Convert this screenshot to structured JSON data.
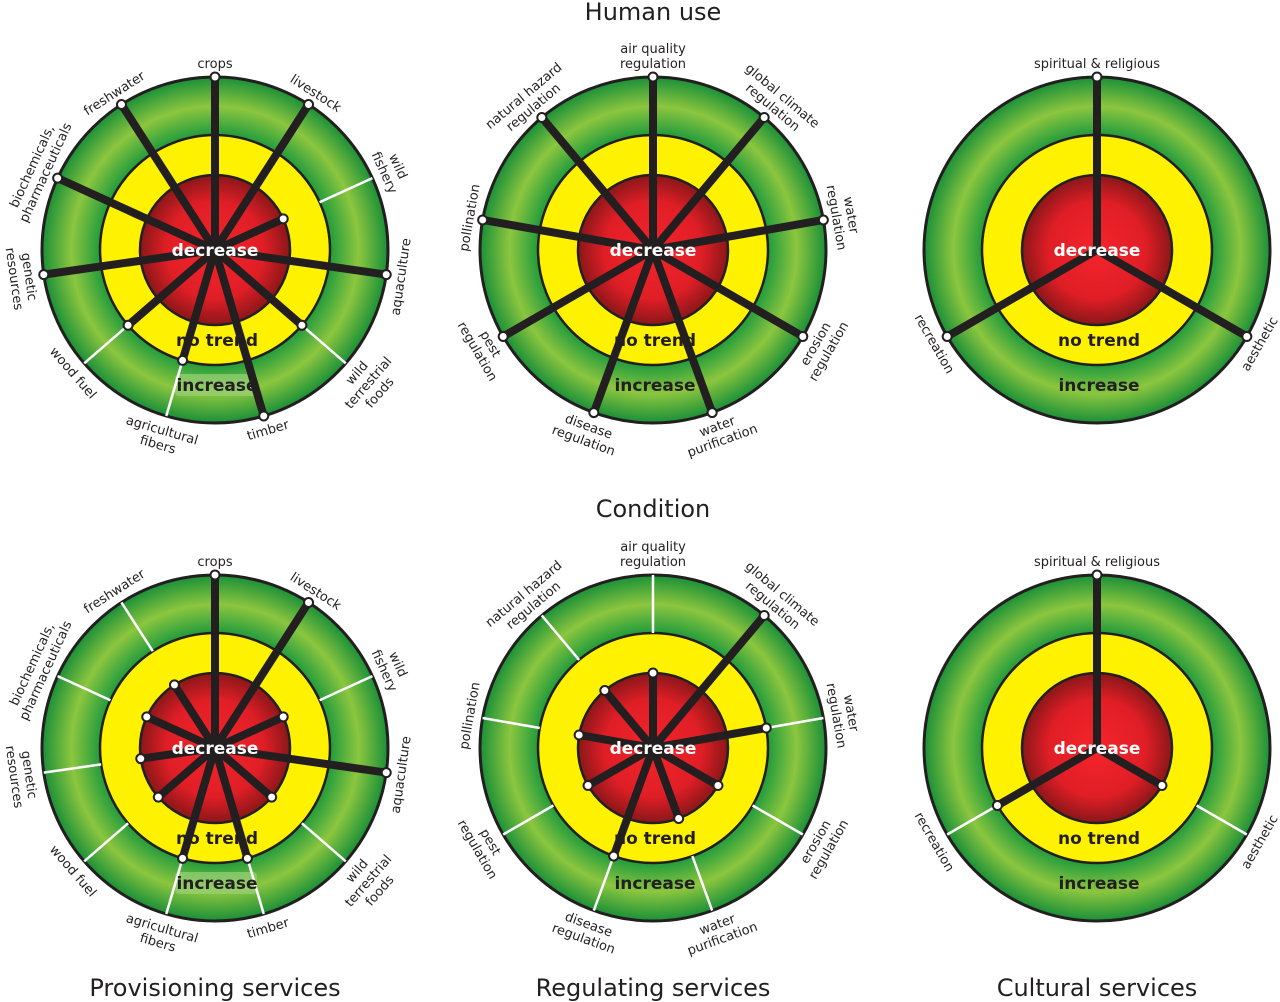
{
  "row_titles": [
    "Human use",
    "Condition"
  ],
  "column_titles": [
    "Provisioning services",
    "Regulating services",
    "Cultural services"
  ],
  "ring_labels": {
    "inner": "decrease",
    "middle": "no trend",
    "outer": "increase"
  },
  "colors": {
    "decrease": "#e3202a",
    "no_trend": "#fff200",
    "increase": "#5cb544",
    "spoke": "#231f20"
  },
  "service_labels": {
    "provisioning": [
      [
        "crops"
      ],
      [
        "livestock"
      ],
      [
        "wild",
        "fishery"
      ],
      [
        "aquaculture"
      ],
      [
        "wild",
        "terrestrial",
        "foods"
      ],
      [
        "timber"
      ],
      [
        "agricultural",
        "fibers"
      ],
      [
        "wood fuel"
      ],
      [
        "genetic",
        "resources"
      ],
      [
        "biochemicals,",
        "pharmaceuticals"
      ],
      [
        "freshwater"
      ]
    ],
    "regulating": [
      [
        "air quality",
        "regulation"
      ],
      [
        "global climate",
        "regulation"
      ],
      [
        "water",
        "regulation"
      ],
      [
        "erosion",
        "regulation"
      ],
      [
        "water",
        "purification"
      ],
      [
        "disease",
        "regulation"
      ],
      [
        "pest",
        "regulation"
      ],
      [
        "pollination"
      ],
      [
        "natural hazard",
        "regulation"
      ]
    ],
    "cultural": [
      [
        "spiritual & religious"
      ],
      [
        "aesthetic"
      ],
      [
        "recreation"
      ]
    ]
  },
  "diagrams": [
    {
      "row": "Human use",
      "column": "Provisioning services",
      "services": "provisioning",
      "increase_highlight": true,
      "trends": [
        "increase",
        "increase",
        "decrease",
        "increase",
        "no trend",
        "increase",
        "no trend",
        "no trend",
        "increase",
        "increase",
        "increase"
      ]
    },
    {
      "row": "Human use",
      "column": "Regulating services",
      "services": "regulating",
      "trends": [
        "increase",
        "increase",
        "increase",
        "increase",
        "increase",
        "increase",
        "increase",
        "increase",
        "increase"
      ]
    },
    {
      "row": "Human use",
      "column": "Cultural services",
      "services": "cultural",
      "trends": [
        "increase",
        "increase",
        "increase"
      ]
    },
    {
      "row": "Condition",
      "column": "Provisioning services",
      "services": "provisioning",
      "increase_highlight": true,
      "trends": [
        "increase",
        "increase",
        "decrease",
        "increase",
        "decrease",
        "no trend",
        "no trend",
        "decrease",
        "decrease",
        "decrease",
        "decrease"
      ]
    },
    {
      "row": "Condition",
      "column": "Regulating services",
      "services": "regulating",
      "trends": [
        "decrease",
        "increase",
        "no trend",
        "decrease",
        "decrease",
        "no trend",
        "decrease",
        "decrease",
        "decrease"
      ]
    },
    {
      "row": "Condition",
      "column": "Cultural services",
      "services": "cultural",
      "trends": [
        "increase",
        "decrease",
        "no trend"
      ]
    }
  ]
}
